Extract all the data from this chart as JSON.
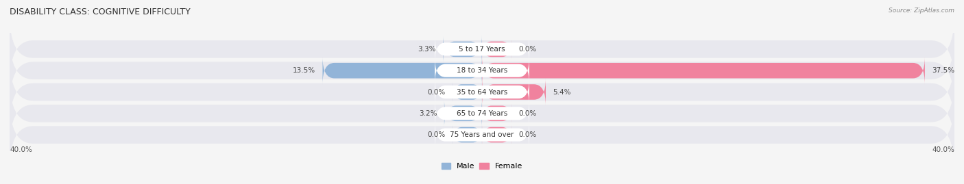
{
  "title": "DISABILITY CLASS: COGNITIVE DIFFICULTY",
  "source": "Source: ZipAtlas.com",
  "categories": [
    "5 to 17 Years",
    "18 to 34 Years",
    "35 to 64 Years",
    "65 to 74 Years",
    "75 Years and over"
  ],
  "male_values": [
    3.3,
    13.5,
    0.0,
    3.2,
    0.0
  ],
  "female_values": [
    0.0,
    37.5,
    5.4,
    0.0,
    0.0
  ],
  "male_color": "#92b4d8",
  "female_color": "#f0829e",
  "bar_bg_color": "#e0e0e6",
  "label_pill_color": "#ffffff",
  "axis_max": 40.0,
  "axis_label_left": "40.0%",
  "axis_label_right": "40.0%",
  "title_fontsize": 9,
  "label_fontsize": 7.5,
  "category_fontsize": 7.5,
  "legend_fontsize": 8,
  "background_color": "#f5f5f5",
  "row_bg_color": "#e8e8ee",
  "row_sep_color": "#ffffff"
}
